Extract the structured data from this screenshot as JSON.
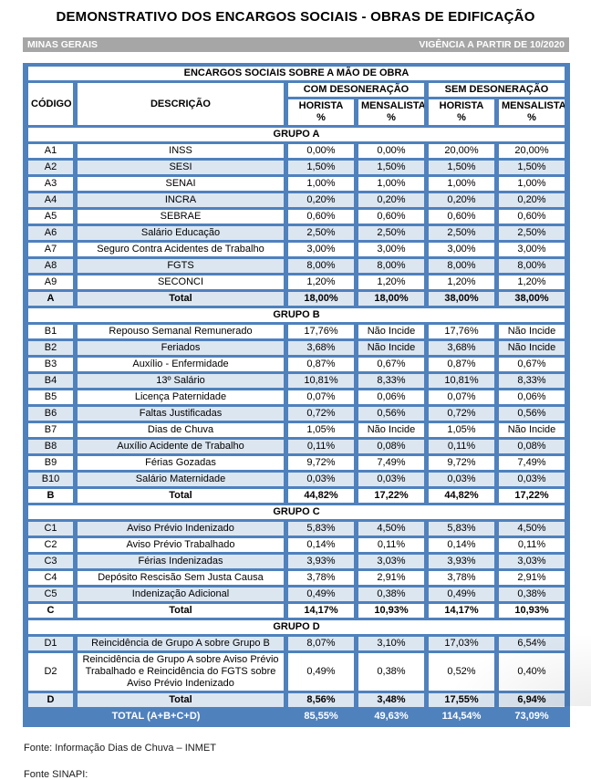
{
  "page": {
    "title": "DEMONSTRATIVO DOS ENCARGOS SOCIAIS - OBRAS DE EDIFICAÇÃO",
    "region": "MINAS GERAIS",
    "validity": "VIGÊNCIA A PARTIR DE 10/2020",
    "footer_inmet": "Fonte: Informação Dias de Chuva – INMET",
    "footer_sinapi": "Fonte SINAPI:"
  },
  "colors": {
    "blue": "#4F81BD",
    "light_blue": "#DCE6F1",
    "gray": "#A6A6A6"
  },
  "table": {
    "title": "ENCARGOS SOCIAIS SOBRE A MÃO DE OBRA",
    "col_code": "CÓDIGO",
    "col_desc": "DESCRIÇÃO",
    "group_com": "COM DESONERAÇÃO",
    "group_sem": "SEM DESONERAÇÃO",
    "sub_horista": "HORISTA",
    "sub_mensalista": "MENSALISTA",
    "sub_pct": "%",
    "groups": [
      {
        "name": "GRUPO A",
        "rows": [
          {
            "code": "A1",
            "desc": "INSS",
            "values": [
              "0,00%",
              "0,00%",
              "20,00%",
              "20,00%"
            ]
          },
          {
            "code": "A2",
            "desc": "SESI",
            "values": [
              "1,50%",
              "1,50%",
              "1,50%",
              "1,50%"
            ]
          },
          {
            "code": "A3",
            "desc": "SENAI",
            "values": [
              "1,00%",
              "1,00%",
              "1,00%",
              "1,00%"
            ]
          },
          {
            "code": "A4",
            "desc": "INCRA",
            "values": [
              "0,20%",
              "0,20%",
              "0,20%",
              "0,20%"
            ]
          },
          {
            "code": "A5",
            "desc": "SEBRAE",
            "values": [
              "0,60%",
              "0,60%",
              "0,60%",
              "0,60%"
            ]
          },
          {
            "code": "A6",
            "desc": "Salário Educação",
            "values": [
              "2,50%",
              "2,50%",
              "2,50%",
              "2,50%"
            ]
          },
          {
            "code": "A7",
            "desc": "Seguro Contra Acidentes de Trabalho",
            "values": [
              "3,00%",
              "3,00%",
              "3,00%",
              "3,00%"
            ]
          },
          {
            "code": "A8",
            "desc": "FGTS",
            "values": [
              "8,00%",
              "8,00%",
              "8,00%",
              "8,00%"
            ]
          },
          {
            "code": "A9",
            "desc": "SECONCI",
            "values": [
              "1,20%",
              "1,20%",
              "1,20%",
              "1,20%"
            ]
          }
        ],
        "total": {
          "code": "A",
          "label": "Total",
          "values": [
            "18,00%",
            "18,00%",
            "38,00%",
            "38,00%"
          ]
        }
      },
      {
        "name": "GRUPO B",
        "rows": [
          {
            "code": "B1",
            "desc": "Repouso Semanal Remunerado",
            "values": [
              "17,76%",
              "Não Incide",
              "17,76%",
              "Não Incide"
            ]
          },
          {
            "code": "B2",
            "desc": "Feriados",
            "values": [
              "3,68%",
              "Não Incide",
              "3,68%",
              "Não Incide"
            ]
          },
          {
            "code": "B3",
            "desc": "Auxílio - Enfermidade",
            "values": [
              "0,87%",
              "0,67%",
              "0,87%",
              "0,67%"
            ]
          },
          {
            "code": "B4",
            "desc": "13º Salário",
            "values": [
              "10,81%",
              "8,33%",
              "10,81%",
              "8,33%"
            ]
          },
          {
            "code": "B5",
            "desc": "Licença Paternidade",
            "values": [
              "0,07%",
              "0,06%",
              "0,07%",
              "0,06%"
            ]
          },
          {
            "code": "B6",
            "desc": "Faltas Justificadas",
            "values": [
              "0,72%",
              "0,56%",
              "0,72%",
              "0,56%"
            ]
          },
          {
            "code": "B7",
            "desc": "Dias de Chuva",
            "values": [
              "1,05%",
              "Não Incide",
              "1,05%",
              "Não Incide"
            ]
          },
          {
            "code": "B8",
            "desc": "Auxílio Acidente de Trabalho",
            "values": [
              "0,11%",
              "0,08%",
              "0,11%",
              "0,08%"
            ]
          },
          {
            "code": "B9",
            "desc": "Férias Gozadas",
            "values": [
              "9,72%",
              "7,49%",
              "9,72%",
              "7,49%"
            ]
          },
          {
            "code": "B10",
            "desc": "Salário Maternidade",
            "values": [
              "0,03%",
              "0,03%",
              "0,03%",
              "0,03%"
            ]
          }
        ],
        "total": {
          "code": "B",
          "label": "Total",
          "values": [
            "44,82%",
            "17,22%",
            "44,82%",
            "17,22%"
          ]
        }
      },
      {
        "name": "GRUPO C",
        "rows": [
          {
            "code": "C1",
            "desc": "Aviso Prévio Indenizado",
            "values": [
              "5,83%",
              "4,50%",
              "5,83%",
              "4,50%"
            ]
          },
          {
            "code": "C2",
            "desc": "Aviso Prévio Trabalhado",
            "values": [
              "0,14%",
              "0,11%",
              "0,14%",
              "0,11%"
            ]
          },
          {
            "code": "C3",
            "desc": "Férias Indenizadas",
            "values": [
              "3,93%",
              "3,03%",
              "3,93%",
              "3,03%"
            ]
          },
          {
            "code": "C4",
            "desc": "Depósito Rescisão Sem Justa Causa",
            "values": [
              "3,78%",
              "2,91%",
              "3,78%",
              "2,91%"
            ]
          },
          {
            "code": "C5",
            "desc": "Indenização Adicional",
            "values": [
              "0,49%",
              "0,38%",
              "0,49%",
              "0,38%"
            ]
          }
        ],
        "total": {
          "code": "C",
          "label": "Total",
          "values": [
            "14,17%",
            "10,93%",
            "14,17%",
            "10,93%"
          ]
        }
      },
      {
        "name": "GRUPO D",
        "rows": [
          {
            "code": "D1",
            "desc": "Reincidência de Grupo A sobre Grupo B",
            "values": [
              "8,07%",
              "3,10%",
              "17,03%",
              "6,54%"
            ]
          },
          {
            "code": "D2",
            "desc": "Reincidência de Grupo A sobre Aviso Prévio Trabalhado e Reincidência do FGTS sobre Aviso Prévio Indenizado",
            "values": [
              "0,49%",
              "0,38%",
              "0,52%",
              "0,40%"
            ]
          }
        ],
        "total": {
          "code": "D",
          "label": "Total",
          "values": [
            "8,56%",
            "3,48%",
            "17,55%",
            "6,94%"
          ]
        }
      }
    ],
    "grand_total": {
      "label": "TOTAL (A+B+C+D)",
      "values": [
        "85,55%",
        "49,63%",
        "114,54%",
        "73,09%"
      ]
    }
  }
}
